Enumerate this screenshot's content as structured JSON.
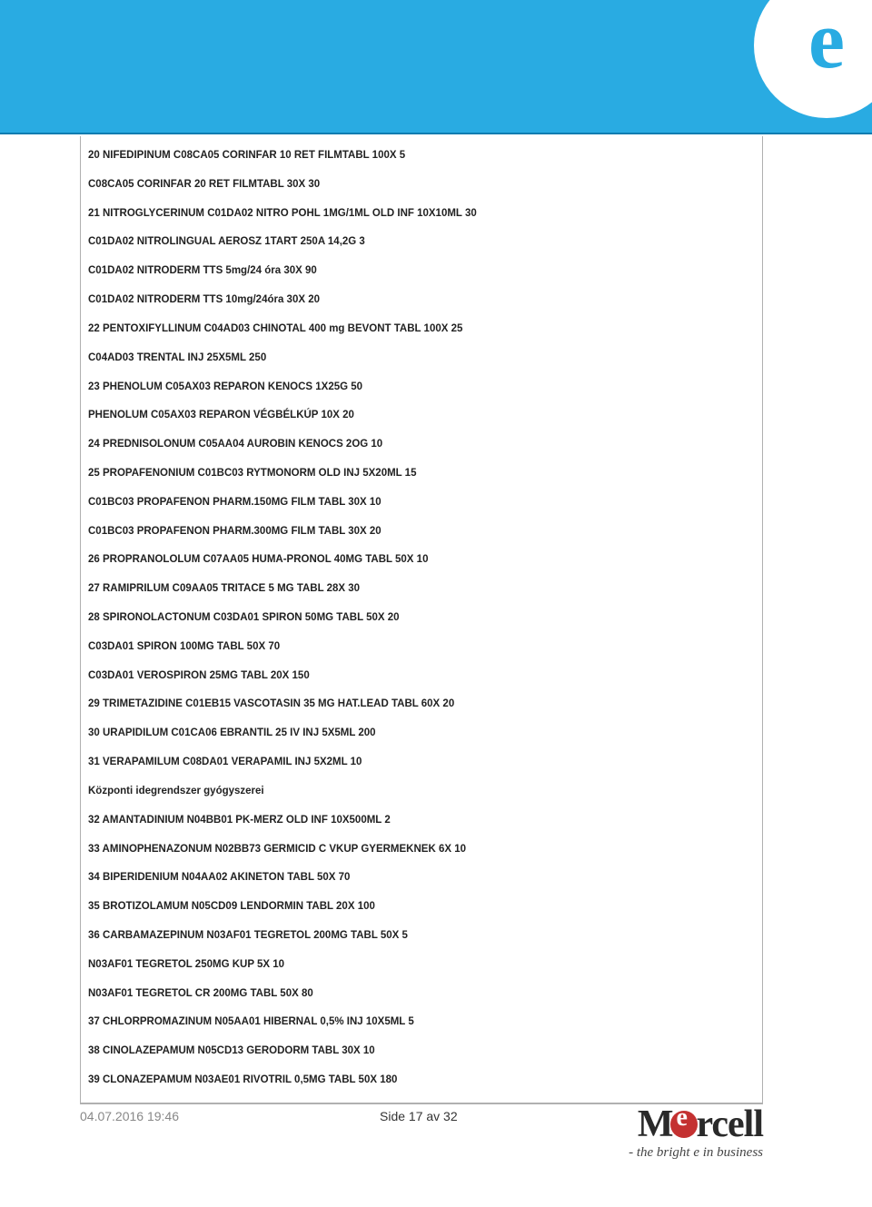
{
  "header": {
    "band_color": "#29abe2",
    "logo_bg": "#ffffff",
    "logo_letter": "e"
  },
  "lines": [
    "20 NIFEDIPINUM C08CA05 CORINFAR 10 RET FILMTABL 100X 5",
    "C08CA05 CORINFAR 20 RET FILMTABL 30X 30",
    "21 NITROGLYCERINUM C01DA02 NITRO POHL 1MG/1ML OLD INF 10X10ML 30",
    "C01DA02 NITROLINGUAL AEROSZ 1TART 250A 14,2G 3",
    "C01DA02 NITRODERM TTS 5mg/24 óra 30X 90",
    "C01DA02 NITRODERM TTS 10mg/24óra 30X 20",
    "22 PENTOXIFYLLINUM C04AD03 CHINOTAL 400 mg BEVONT TABL 100X 25",
    "C04AD03 TRENTAL INJ 25X5ML 250",
    "23 PHENOLUM C05AX03 REPARON KENOCS 1X25G 50",
    "PHENOLUM C05AX03 REPARON VÉGBÉLKÚP 10X 20",
    "24 PREDNISOLONUM C05AA04 AUROBIN KENOCS 2OG 10",
    "25 PROPAFENONIUM C01BC03 RYTMONORM OLD INJ 5X20ML 15",
    "C01BC03 PROPAFENON PHARM.150MG FILM TABL 30X 10",
    "C01BC03 PROPAFENON PHARM.300MG FILM TABL 30X 20",
    "26 PROPRANOLOLUM C07AA05 HUMA-PRONOL 40MG TABL 50X 10",
    "27 RAMIPRILUM C09AA05 TRITACE 5 MG TABL 28X 30",
    "28 SPIRONOLACTONUM C03DA01 SPIRON 50MG TABL 50X 20",
    "C03DA01 SPIRON 100MG TABL 50X 70",
    "C03DA01 VEROSPIRON 25MG TABL 20X 150",
    "29 TRIMETAZIDINE C01EB15 VASCOTASIN 35 MG HAT.LEAD TABL 60X 20",
    "30 URAPIDILUM C01CA06 EBRANTIL 25 IV INJ 5X5ML 200",
    "31 VERAPAMILUM C08DA01 VERAPAMIL INJ 5X2ML 10",
    "Központi idegrendszer gyógyszerei",
    "32 AMANTADINIUM N04BB01 PK-MERZ OLD INF 10X500ML 2",
    "33 AMINOPHENAZONUM N02BB73 GERMICID C VKUP GYERMEKNEK 6X 10",
    "34 BIPERIDENIUM N04AA02 AKINETON TABL 50X 70",
    "35 BROTIZOLAMUM N05CD09 LENDORMIN TABL 20X 100",
    "36 CARBAMAZEPINUM N03AF01 TEGRETOL 200MG TABL 50X 5",
    "N03AF01 TEGRETOL 250MG KUP 5X 10",
    "N03AF01 TEGRETOL CR 200MG TABL 50X 80",
    "37 CHLORPROMAZINUM N05AA01 HIBERNAL 0,5% INJ 10X5ML 5",
    "38 CINOLAZEPAMUM N05CD13 GERODORM TABL 30X 10",
    "39 CLONAZEPAMUM N03AE01 RIVOTRIL 0,5MG TABL 50X 180"
  ],
  "footer": {
    "date": "04.07.2016 19:46",
    "page": "Side 17 av 32",
    "brand_pre": "M",
    "brand_post": "rcell",
    "tagline": "- the bright e in business"
  }
}
